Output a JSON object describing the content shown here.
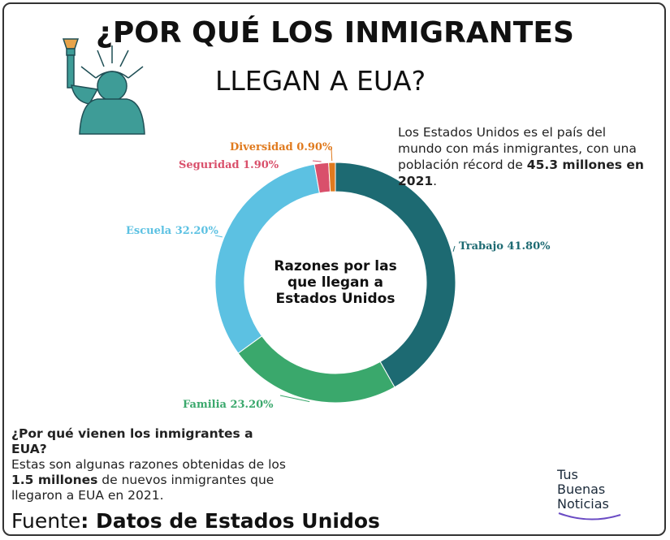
{
  "header": {
    "title_line1": "¿POR QUÉ LOS INMIGRANTES",
    "title_line2": "LLEGAN A EUA?"
  },
  "note": {
    "before": "Los Estados Unidos es el país del mundo con más inmigrantes, con una población récord de ",
    "bold": "45.3 millones en 2021",
    "after": "."
  },
  "chart_data": {
    "type": "pie",
    "center_label": [
      "Razones por las",
      "que llegan a",
      "Estados Unidos"
    ],
    "categories": [
      "Trabajo",
      "Familia",
      "Escuela",
      "Seguridad",
      "Diversidad"
    ],
    "values": [
      41.8,
      23.2,
      32.2,
      1.9,
      0.9
    ],
    "value_labels": [
      "41.80%",
      "23.20%",
      "32.20%",
      "1.90%",
      "0.90%"
    ],
    "colors": [
      "#1d6a72",
      "#3aa86c",
      "#5cc1e2",
      "#d9506b",
      "#e07a1e"
    ]
  },
  "question": {
    "title": "¿Por qué vienen los inmigrantes a EUA?",
    "before": "Estas son algunas razones obtenidas de los ",
    "bold": "1.5 millones",
    "after": " de nuevos inmigrantes que llegaron a EUA en 2021."
  },
  "source": {
    "label": "Fuente",
    "bold": ": Datos de Estados Unidos"
  },
  "logo": [
    "Tus",
    "Buenas",
    "Noticias"
  ]
}
